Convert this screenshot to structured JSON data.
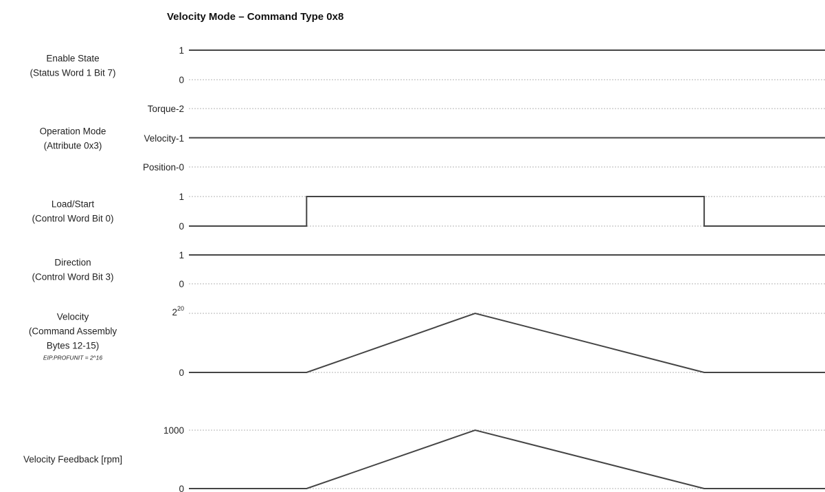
{
  "title": "Velocity Mode – Command Type 0x8",
  "signals": [
    {
      "id": "enable-state",
      "label_lines": [
        "Enable State",
        "(Status Word 1 Bit 7)"
      ],
      "levels": [
        {
          "label": "1",
          "value": 1
        },
        {
          "label": "0",
          "value": 0
        }
      ],
      "waveform": [
        [
          0,
          1
        ],
        [
          1,
          1
        ]
      ]
    },
    {
      "id": "operation-mode",
      "label_lines": [
        "Operation Mode",
        "(Attribute 0x3)"
      ],
      "levels": [
        {
          "label": "Torque-2",
          "value": 2
        },
        {
          "label": "Velocity-1",
          "value": 1
        },
        {
          "label": "Position-0",
          "value": 0
        }
      ],
      "waveform": [
        [
          0,
          1
        ],
        [
          1,
          1
        ]
      ]
    },
    {
      "id": "load-start",
      "label_lines": [
        "Load/Start",
        "(Control Word Bit 0)"
      ],
      "levels": [
        {
          "label": "1",
          "value": 1
        },
        {
          "label": "0",
          "value": 0
        }
      ],
      "waveform": [
        [
          0,
          0
        ],
        [
          0.185,
          0
        ],
        [
          0.185,
          1
        ],
        [
          0.81,
          1
        ],
        [
          0.81,
          0
        ],
        [
          1,
          0
        ]
      ]
    },
    {
      "id": "direction",
      "label_lines": [
        "Direction",
        "(Control Word Bit 3)"
      ],
      "levels": [
        {
          "label": "1",
          "value": 1
        },
        {
          "label": "0",
          "value": 0
        }
      ],
      "waveform": [
        [
          0,
          1
        ],
        [
          1,
          1
        ]
      ]
    },
    {
      "id": "velocity-command",
      "label_lines": [
        "Velocity",
        "(Command Assembly",
        "Bytes 12-15)"
      ],
      "note": "EIP.PROFUNIT = 2^16",
      "levels": [
        {
          "label": "2",
          "sup": "20",
          "value": 1048576
        },
        {
          "label": "0",
          "value": 0
        }
      ],
      "waveform": [
        [
          0,
          0
        ],
        [
          0.185,
          0
        ],
        [
          0.45,
          1048576
        ],
        [
          0.81,
          0
        ],
        [
          1,
          0
        ]
      ]
    },
    {
      "id": "velocity-feedback",
      "label_lines": [
        "Velocity Feedback [rpm]"
      ],
      "levels": [
        {
          "label": "1000",
          "value": 1000
        },
        {
          "label": "0",
          "value": 0
        }
      ],
      "waveform": [
        [
          0,
          0
        ],
        [
          0.185,
          0
        ],
        [
          0.45,
          1000
        ],
        [
          0.81,
          0
        ],
        [
          1,
          0
        ]
      ]
    }
  ]
}
